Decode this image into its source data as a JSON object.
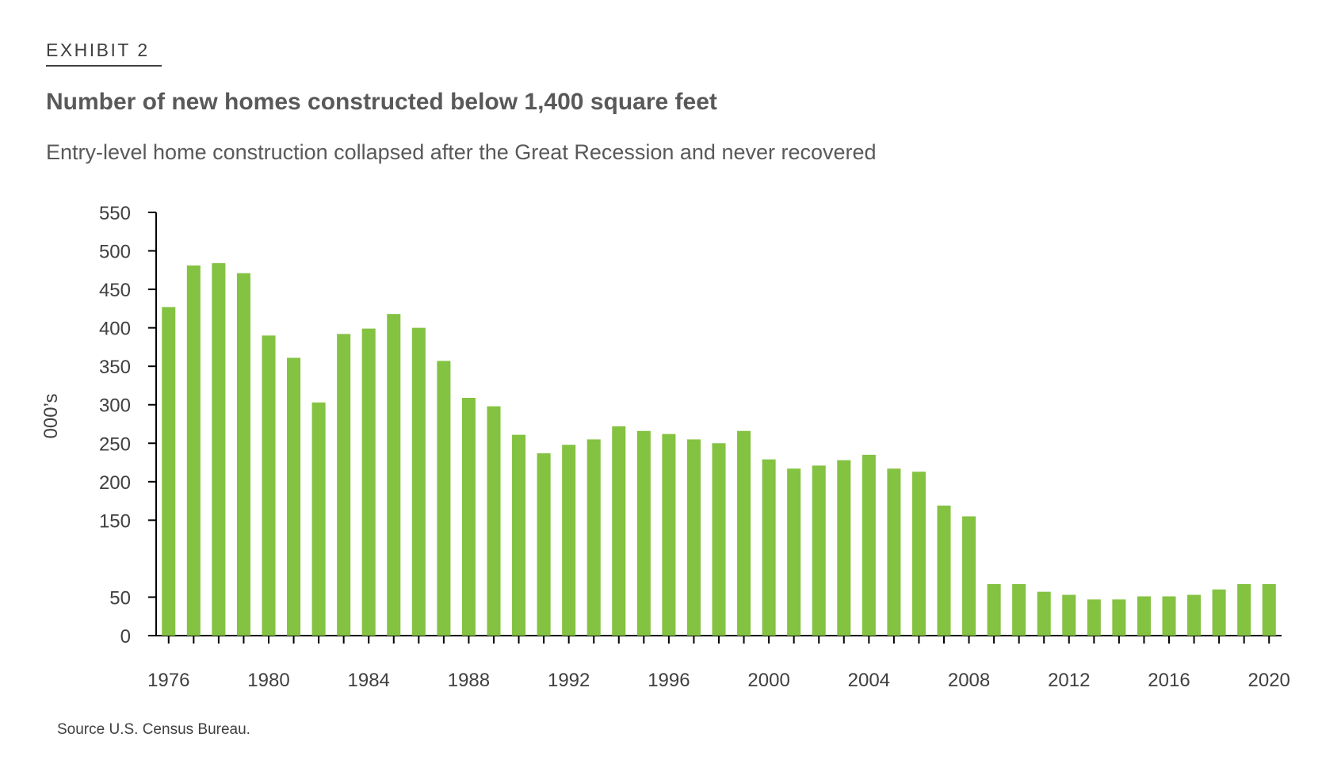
{
  "header": {
    "exhibit": "EXHIBIT 2",
    "title": "Number of new homes constructed below 1,400 square feet",
    "subtitle": "Entry-level home construction collapsed after the Great Recession and never recovered"
  },
  "source": "Source U.S. Census Bureau.",
  "colors": {
    "bar": "#84c242",
    "axis": "#000000",
    "text": "#595959"
  },
  "chart_data": {
    "type": "bar",
    "ylabel": "000’s",
    "xlabel": "",
    "ylim": [
      0,
      550
    ],
    "yticks": [
      0,
      50,
      150,
      200,
      250,
      300,
      350,
      400,
      450,
      500,
      550
    ],
    "xtick_labels": [
      "1976",
      "1980",
      "1984",
      "1988",
      "1992",
      "1996",
      "2000",
      "2004",
      "2008",
      "2012",
      "2016",
      "2020"
    ],
    "categories": [
      "1976",
      "1977",
      "1978",
      "1979",
      "1980",
      "1981",
      "1982",
      "1983",
      "1984",
      "1985",
      "1986",
      "1987",
      "1988",
      "1989",
      "1990",
      "1991",
      "1992",
      "1993",
      "1994",
      "1995",
      "1996",
      "1997",
      "1998",
      "1999",
      "2000",
      "2001",
      "2002",
      "2003",
      "2004",
      "2005",
      "2006",
      "2007",
      "2008",
      "2009",
      "2010",
      "2011",
      "2012",
      "2013",
      "2014",
      "2015",
      "2016",
      "2017",
      "2018",
      "2019",
      "2020"
    ],
    "values": [
      427,
      481,
      484,
      471,
      390,
      361,
      303,
      392,
      399,
      418,
      400,
      357,
      309,
      298,
      261,
      237,
      248,
      255,
      272,
      266,
      262,
      255,
      250,
      266,
      229,
      217,
      221,
      228,
      235,
      217,
      213,
      169,
      155,
      67,
      67,
      57,
      53,
      47,
      47,
      51,
      51,
      53,
      60,
      67,
      67
    ],
    "grid": false,
    "legend": "none"
  }
}
